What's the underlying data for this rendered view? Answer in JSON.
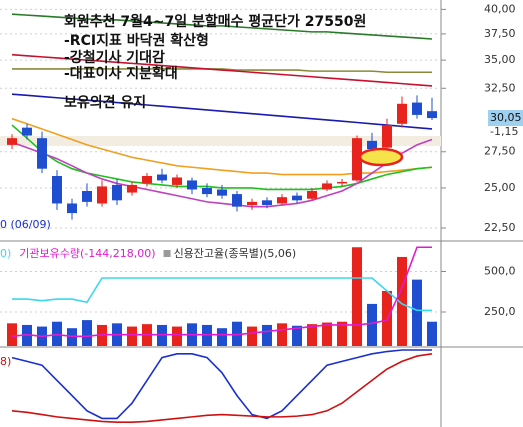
{
  "chart_data": [
    {
      "type": "candlestick",
      "annotation": [
        "회원추천 7월4~7일 분할매수 평균단가 27550원",
        "-RCI지표 바닥권 확산형",
        "-강철기사 기대감",
        "-대표이사 지분확대",
        "보유의견 유지"
      ],
      "min_label": "0 (06/09)",
      "open": [
        28000,
        29300,
        28500,
        25800,
        24000,
        24800,
        24000,
        25200,
        24700,
        25300,
        25900,
        25200,
        25500,
        25000,
        24900,
        24600,
        23900,
        24200,
        24000,
        24500,
        24300,
        24900,
        25300,
        25500,
        28300,
        27800,
        29600,
        31300,
        30600
      ],
      "high": [
        28800,
        29600,
        29000,
        26200,
        24300,
        25300,
        25500,
        25600,
        25400,
        26000,
        26300,
        25900,
        25700,
        25300,
        25200,
        24800,
        24300,
        24400,
        24600,
        24700,
        25000,
        25500,
        25600,
        28700,
        28900,
        30000,
        31800,
        31900,
        31700
      ],
      "low": [
        27700,
        28400,
        26000,
        23600,
        23000,
        23800,
        23800,
        23900,
        24500,
        25100,
        25300,
        25000,
        24600,
        24400,
        24300,
        23500,
        23600,
        23700,
        23900,
        24000,
        24200,
        24800,
        25100,
        25400,
        27400,
        27600,
        29300,
        30000,
        29900
      ],
      "close": [
        28500,
        28700,
        26300,
        24000,
        23400,
        24100,
        25100,
        24200,
        25200,
        25800,
        25500,
        25700,
        24900,
        24600,
        24500,
        23800,
        24100,
        23900,
        24400,
        24200,
        24800,
        25300,
        25400,
        28500,
        27700,
        29500,
        31200,
        30300,
        30050
      ],
      "up_color": "#e8231d",
      "down_color": "#1f4fd0",
      "series": [
        {
          "color": "#2a7a2a",
          "values": [
            39500,
            39400,
            39300,
            39200,
            39100,
            39000,
            38900,
            38900,
            38800,
            38700,
            38600,
            38500,
            38400,
            38300,
            38300,
            38200,
            38100,
            38000,
            37900,
            37800,
            37700,
            37700,
            37600,
            37500,
            37400,
            37300,
            37200,
            37100,
            37000
          ]
        },
        {
          "color": "#8a8a3a",
          "values": [
            34200,
            34200,
            34200,
            34200,
            34200,
            34200,
            34200,
            34200,
            34200,
            34200,
            34200,
            34200,
            34200,
            34200,
            34200,
            34100,
            34100,
            34100,
            34100,
            34100,
            34000,
            34000,
            34000,
            34000,
            34000,
            33900,
            33900,
            33900,
            33900
          ]
        },
        {
          "color": "#c8102e",
          "values": [
            35500,
            35400,
            35300,
            35200,
            35100,
            35000,
            34900,
            34800,
            34700,
            34600,
            34500,
            34400,
            34300,
            34200,
            34100,
            34000,
            33900,
            33800,
            33700,
            33600,
            33500,
            33400,
            33300,
            33200,
            33100,
            33000,
            32900,
            32800,
            32700
          ]
        },
        {
          "color": "#1a1ab0",
          "values": [
            32000,
            31900,
            31800,
            31700,
            31600,
            31500,
            31400,
            31300,
            31200,
            31100,
            31000,
            30900,
            30800,
            30700,
            30600,
            30500,
            30400,
            30300,
            30200,
            30100,
            30000,
            29900,
            29800,
            29700,
            29600,
            29500,
            29400,
            29300,
            29200
          ]
        },
        {
          "color": "#f0a020",
          "values": [
            30000,
            29600,
            29200,
            28800,
            28400,
            28000,
            27700,
            27400,
            27100,
            26900,
            26700,
            26500,
            26400,
            26300,
            26200,
            26100,
            26000,
            26000,
            25900,
            25900,
            25900,
            25900,
            25900,
            26000,
            26000,
            26100,
            26200,
            26300,
            26400
          ]
        },
        {
          "color": "#20c020",
          "values": [
            29500,
            28500,
            27500,
            26800,
            26300,
            26000,
            25800,
            25600,
            25400,
            25300,
            25200,
            25100,
            25100,
            25100,
            25000,
            25000,
            25000,
            24900,
            24900,
            24900,
            24900,
            25000,
            25100,
            25300,
            25600,
            25900,
            26100,
            26300,
            26400
          ]
        },
        {
          "color": "#c040c0",
          "values": [
            28200,
            27800,
            27400,
            27000,
            26500,
            26000,
            25600,
            25300,
            25100,
            24900,
            24700,
            24500,
            24300,
            24100,
            24000,
            23900,
            23800,
            23800,
            23900,
            24000,
            24200,
            24500,
            24800,
            25300,
            26000,
            26700,
            27400,
            28000,
            28400
          ]
        }
      ],
      "ylim": [
        21800,
        41000
      ],
      "log": true,
      "grid": true,
      "yticks": [
        {
          "value": 40000,
          "label": "40,00"
        },
        {
          "value": 37500,
          "label": "37,50"
        },
        {
          "value": 35000,
          "label": "35,00"
        },
        {
          "value": 32500,
          "label": "32,50"
        },
        {
          "value": 27500,
          "label": "27,50"
        },
        {
          "value": 25000,
          "label": "25,00"
        },
        {
          "value": 22500,
          "label": "22,50"
        }
      ],
      "price_tag": {
        "value": 30050,
        "label": "30,05"
      },
      "change_label": "-1,15"
    },
    {
      "type": "bar",
      "bars": {
        "name": "신용잔고율(종목별)(5,06)",
        "marker_color": "#9a9a9a",
        "values": [
          180,
          170,
          160,
          190,
          150,
          200,
          170,
          180,
          160,
          175,
          170,
          160,
          180,
          170,
          150,
          190,
          160,
          170,
          180,
          165,
          175,
          185,
          190,
          650,
          300,
          380,
          590,
          450,
          190
        ]
      },
      "series": [
        {
          "name": "0)",
          "color": "#38d8f0",
          "values": [
            330,
            330,
            320,
            330,
            330,
            310,
            460,
            460,
            460,
            460,
            460,
            460,
            460,
            460,
            460,
            460,
            460,
            460,
            460,
            460,
            460,
            460,
            460,
            460,
            460,
            380,
            300,
            260,
            260
          ]
        },
        {
          "name": "기관보유수량(-144,218,00)",
          "color": "#e01ad0",
          "values": [
            100,
            110,
            100,
            110,
            100,
            100,
            110,
            110,
            110,
            110,
            110,
            110,
            110,
            110,
            110,
            110,
            120,
            130,
            140,
            150,
            160,
            170,
            170,
            170,
            180,
            200,
            400,
            650,
            650
          ]
        }
      ],
      "ylim": [
        40,
        670
      ],
      "grid": true,
      "yticks": [
        {
          "value": 500,
          "label": "500,0"
        },
        {
          "value": 250,
          "label": "250,0"
        }
      ]
    },
    {
      "type": "line",
      "label": "8)",
      "series": [
        {
          "color": "#1a2fd0",
          "values": [
            90,
            85,
            80,
            60,
            40,
            20,
            10,
            10,
            30,
            60,
            90,
            95,
            95,
            90,
            70,
            40,
            15,
            10,
            20,
            40,
            60,
            80,
            85,
            90,
            95,
            98,
            100,
            100,
            100
          ]
        },
        {
          "color": "#d01010",
          "values": [
            20,
            18,
            15,
            12,
            10,
            8,
            6,
            5,
            5,
            6,
            8,
            10,
            12,
            14,
            15,
            14,
            13,
            12,
            12,
            13,
            15,
            20,
            30,
            45,
            60,
            75,
            85,
            92,
            95
          ]
        }
      ],
      "ylim": [
        0,
        100
      ]
    }
  ]
}
